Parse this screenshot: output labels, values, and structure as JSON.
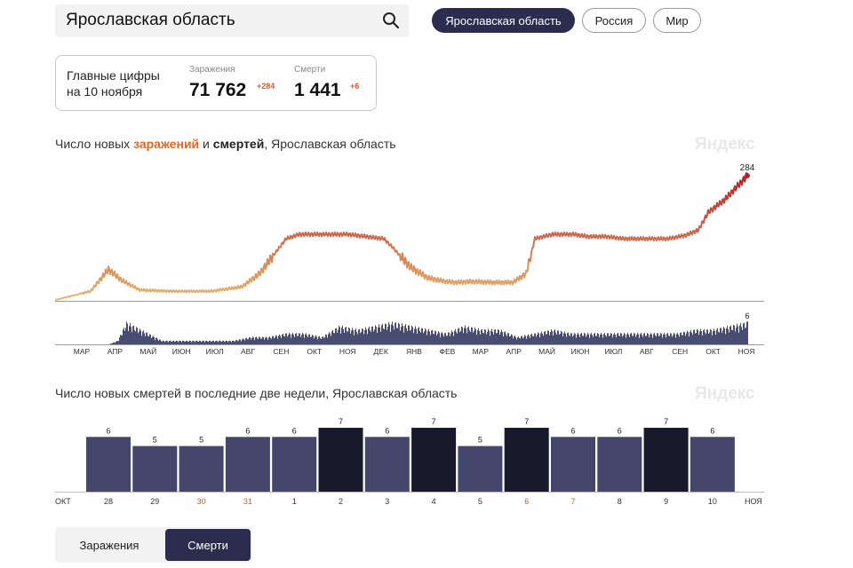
{
  "search": {
    "value": "Ярославская область"
  },
  "regions": [
    {
      "label": "Ярославская область",
      "active": true
    },
    {
      "label": "Россия",
      "active": false
    },
    {
      "label": "Мир",
      "active": false
    }
  ],
  "summary": {
    "title_line1": "Главные цифры",
    "title_line2": "на 10 ноября",
    "infections_label": "Заражения",
    "infections_value": "71 762",
    "infections_delta": "+284",
    "deaths_label": "Смерти",
    "deaths_value": "1 441",
    "deaths_delta": "+6"
  },
  "chart1": {
    "title_pre": "Число новых ",
    "title_hl": "заражений",
    "title_mid": " и ",
    "title_hl2": "смертей",
    "title_post": ", Ярославская область",
    "logo": "Яндекс",
    "last_infections_label": "284",
    "last_deaths_label": "6",
    "months": [
      "МАР",
      "АПР",
      "МАЙ",
      "ИЮН",
      "ИЮЛ",
      "АВГ",
      "СЕН",
      "ОКТ",
      "НОЯ",
      "ДЕК",
      "ЯНВ",
      "ФЕВ",
      "МАР",
      "АПР",
      "МАЙ",
      "ИЮН",
      "ИЮЛ",
      "АВГ",
      "СЕН",
      "ОКТ",
      "НОЯ"
    ],
    "color_low": "#e8b870",
    "color_high": "#b8202a",
    "deaths_color": "#4a4d72"
  },
  "chart2": {
    "title": "Число новых смертей в последние две недели, Ярославская область",
    "logo": "Яндекс",
    "month_start": "ОКТ",
    "month_end": "НОЯ",
    "bar_color": "#44476b",
    "bar_max_color": "#181a2c",
    "weekend_color": "#e0582b"
  },
  "chart_data": [
    {
      "type": "line",
      "series": [
        {
          "name": "заражений",
          "x": [
            0,
            40,
            50,
            60,
            75,
            95,
            130,
            175,
            210,
            230,
            260,
            275,
            290,
            330,
            370,
            380,
            400,
            420,
            440,
            452,
            468,
            495,
            515,
            530,
            540,
            560,
            565,
            583,
            600,
            620,
            640,
            664,
            690,
            710,
            724,
            735,
            754,
            779
          ],
          "values": [
            0,
            20,
            45,
            70,
            45,
            23,
            20,
            20,
            30,
            60,
            140,
            150,
            150,
            150,
            140,
            120,
            75,
            50,
            42,
            40,
            42,
            40,
            40,
            60,
            140,
            150,
            150,
            150,
            145,
            145,
            140,
            140,
            140,
            148,
            160,
            200,
            230,
            284
          ]
        },
        {
          "name": "смертей",
          "x": [
            0,
            20,
            35,
            60,
            70,
            80,
            120,
            140,
            170,
            200,
            220,
            240,
            260,
            280,
            300,
            320,
            340,
            360,
            380,
            400,
            420,
            440,
            460,
            480,
            500,
            520,
            540,
            560,
            580,
            600,
            620,
            640,
            660,
            680,
            700,
            720,
            740,
            760,
            779
          ],
          "values": [
            0,
            0,
            0,
            0,
            1,
            6,
            1,
            1,
            1,
            1,
            2,
            2,
            3,
            3,
            2,
            5,
            4,
            5,
            6,
            5,
            4,
            3,
            5,
            4,
            4,
            2,
            3,
            4,
            3,
            3,
            3,
            3,
            3,
            3,
            3,
            4,
            4,
            5,
            6
          ]
        }
      ]
    },
    {
      "type": "bar",
      "categories": [
        "28",
        "29",
        "30",
        "31",
        "1",
        "2",
        "3",
        "4",
        "5",
        "6",
        "7",
        "8",
        "9",
        "10"
      ],
      "values": [
        6,
        5,
        5,
        6,
        6,
        7,
        6,
        7,
        5,
        7,
        6,
        6,
        7,
        6
      ],
      "weekend": [
        false,
        false,
        true,
        true,
        false,
        false,
        false,
        false,
        false,
        true,
        true,
        false,
        false,
        false
      ],
      "ylim": [
        0,
        7
      ]
    }
  ],
  "tabs": {
    "infections": "Заражения",
    "deaths": "Смерти"
  }
}
